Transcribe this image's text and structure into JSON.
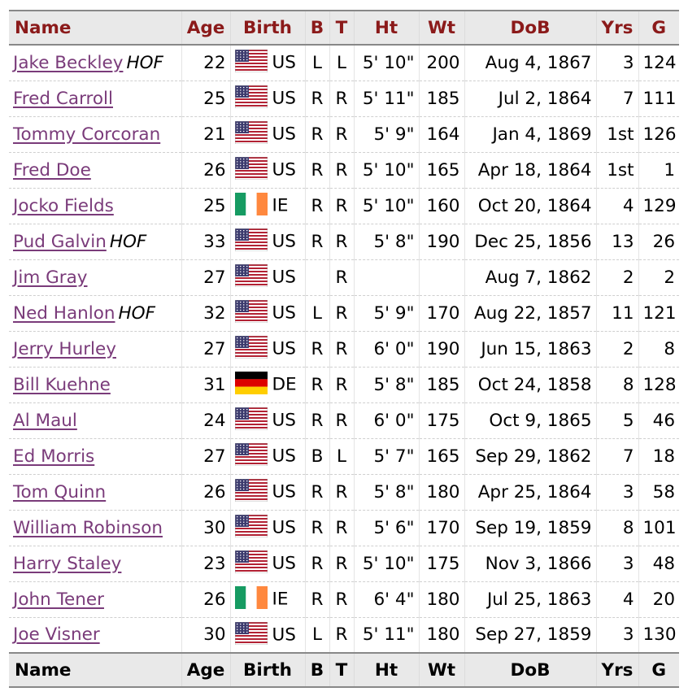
{
  "headers": {
    "name": "Name",
    "age": "Age",
    "birth": "Birth",
    "bats": "B",
    "throws": "T",
    "ht": "Ht",
    "wt": "Wt",
    "dob": "DoB",
    "yrs": "Yrs",
    "g": "G"
  },
  "hof_label": "HOF",
  "players": [
    {
      "name": "Jake Beckley",
      "hof": true,
      "age": "22",
      "flag": "us",
      "country": "US",
      "b": "L",
      "t": "L",
      "ht": "5' 10\"",
      "wt": "200",
      "dob": "Aug 4, 1867",
      "yrs": "3",
      "g": "124"
    },
    {
      "name": "Fred Carroll",
      "hof": false,
      "age": "25",
      "flag": "us",
      "country": "US",
      "b": "R",
      "t": "R",
      "ht": "5' 11\"",
      "wt": "185",
      "dob": "Jul 2, 1864",
      "yrs": "7",
      "g": "111"
    },
    {
      "name": "Tommy Corcoran",
      "hof": false,
      "age": "21",
      "flag": "us",
      "country": "US",
      "b": "R",
      "t": "R",
      "ht": "5' 9\"",
      "wt": "164",
      "dob": "Jan 4, 1869",
      "yrs": "1st",
      "g": "126"
    },
    {
      "name": "Fred Doe",
      "hof": false,
      "age": "26",
      "flag": "us",
      "country": "US",
      "b": "R",
      "t": "R",
      "ht": "5' 10\"",
      "wt": "165",
      "dob": "Apr 18, 1864",
      "yrs": "1st",
      "g": "1"
    },
    {
      "name": "Jocko Fields",
      "hof": false,
      "age": "25",
      "flag": "ie",
      "country": "IE",
      "b": "R",
      "t": "R",
      "ht": "5' 10\"",
      "wt": "160",
      "dob": "Oct 20, 1864",
      "yrs": "4",
      "g": "129"
    },
    {
      "name": "Pud Galvin",
      "hof": true,
      "age": "33",
      "flag": "us",
      "country": "US",
      "b": "R",
      "t": "R",
      "ht": "5' 8\"",
      "wt": "190",
      "dob": "Dec 25, 1856",
      "yrs": "13",
      "g": "26"
    },
    {
      "name": "Jim Gray",
      "hof": false,
      "age": "27",
      "flag": "us",
      "country": "US",
      "b": "",
      "t": "R",
      "ht": "",
      "wt": "",
      "dob": "Aug 7, 1862",
      "yrs": "2",
      "g": "2"
    },
    {
      "name": "Ned Hanlon",
      "hof": true,
      "age": "32",
      "flag": "us",
      "country": "US",
      "b": "L",
      "t": "R",
      "ht": "5' 9\"",
      "wt": "170",
      "dob": "Aug 22, 1857",
      "yrs": "11",
      "g": "121"
    },
    {
      "name": "Jerry Hurley",
      "hof": false,
      "age": "27",
      "flag": "us",
      "country": "US",
      "b": "R",
      "t": "R",
      "ht": "6' 0\"",
      "wt": "190",
      "dob": "Jun 15, 1863",
      "yrs": "2",
      "g": "8"
    },
    {
      "name": "Bill Kuehne",
      "hof": false,
      "age": "31",
      "flag": "de",
      "country": "DE",
      "b": "R",
      "t": "R",
      "ht": "5' 8\"",
      "wt": "185",
      "dob": "Oct 24, 1858",
      "yrs": "8",
      "g": "128"
    },
    {
      "name": "Al Maul",
      "hof": false,
      "age": "24",
      "flag": "us",
      "country": "US",
      "b": "R",
      "t": "R",
      "ht": "6' 0\"",
      "wt": "175",
      "dob": "Oct 9, 1865",
      "yrs": "5",
      "g": "46"
    },
    {
      "name": "Ed Morris",
      "hof": false,
      "age": "27",
      "flag": "us",
      "country": "US",
      "b": "B",
      "t": "L",
      "ht": "5' 7\"",
      "wt": "165",
      "dob": "Sep 29, 1862",
      "yrs": "7",
      "g": "18"
    },
    {
      "name": "Tom Quinn",
      "hof": false,
      "age": "26",
      "flag": "us",
      "country": "US",
      "b": "R",
      "t": "R",
      "ht": "5' 8\"",
      "wt": "180",
      "dob": "Apr 25, 1864",
      "yrs": "3",
      "g": "58"
    },
    {
      "name": "William Robinson",
      "hof": false,
      "age": "30",
      "flag": "us",
      "country": "US",
      "b": "R",
      "t": "R",
      "ht": "5' 6\"",
      "wt": "170",
      "dob": "Sep 19, 1859",
      "yrs": "8",
      "g": "101"
    },
    {
      "name": "Harry Staley",
      "hof": false,
      "age": "23",
      "flag": "us",
      "country": "US",
      "b": "R",
      "t": "R",
      "ht": "5' 10\"",
      "wt": "175",
      "dob": "Nov 3, 1866",
      "yrs": "3",
      "g": "48"
    },
    {
      "name": "John Tener",
      "hof": false,
      "age": "26",
      "flag": "ie",
      "country": "IE",
      "b": "R",
      "t": "R",
      "ht": "6' 4\"",
      "wt": "180",
      "dob": "Jul 25, 1863",
      "yrs": "4",
      "g": "20"
    },
    {
      "name": "Joe Visner",
      "hof": false,
      "age": "30",
      "flag": "us",
      "country": "US",
      "b": "L",
      "t": "R",
      "ht": "5' 11\"",
      "wt": "180",
      "dob": "Sep 27, 1859",
      "yrs": "3",
      "g": "130"
    }
  ],
  "colors": {
    "header_text": "#8b1a1a",
    "header_bg": "#e9e9e9",
    "link": "#7a3b7a"
  }
}
